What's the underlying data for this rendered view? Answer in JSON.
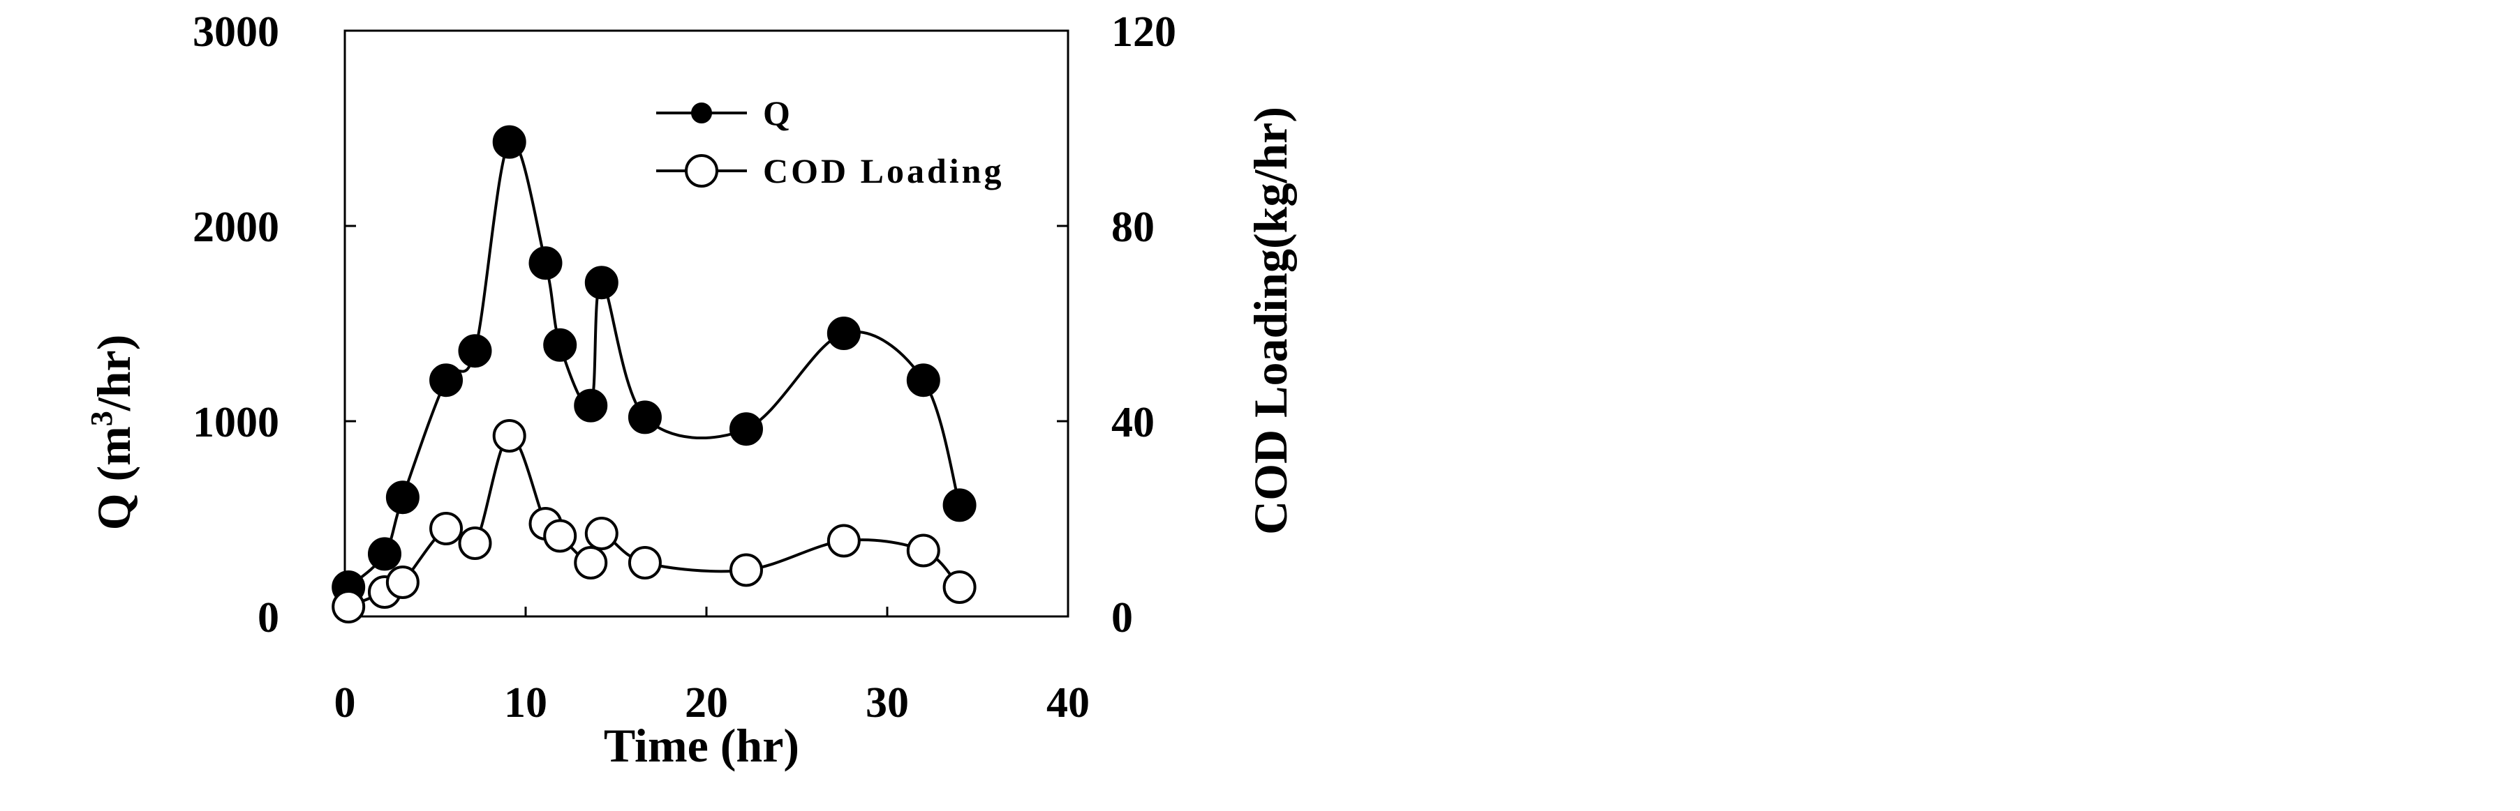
{
  "chart_data": {
    "type": "line",
    "x_axis": {
      "label": "Time (hr)",
      "min": 0,
      "max": 40,
      "ticks": [
        0,
        10,
        20,
        30,
        40
      ]
    },
    "y_left": {
      "label_prefix": "Q (m",
      "label_sup": "3",
      "label_suffix": "/hr)",
      "min": 0,
      "max": 3000,
      "ticks": [
        0,
        1000,
        2000,
        3000
      ]
    },
    "y_right": {
      "label": "COD Loading(kg/hr)",
      "min": 0,
      "max": 120,
      "ticks": [
        0,
        40,
        80,
        120
      ]
    },
    "series": [
      {
        "name": "Q",
        "axis": "left",
        "marker": "filled-circle",
        "color": "#000000",
        "points": [
          {
            "x": 0.2,
            "y": 150
          },
          {
            "x": 2.2,
            "y": 320
          },
          {
            "x": 3.2,
            "y": 610
          },
          {
            "x": 5.6,
            "y": 1210
          },
          {
            "x": 7.2,
            "y": 1360
          },
          {
            "x": 9.1,
            "y": 2430
          },
          {
            "x": 11.1,
            "y": 1810
          },
          {
            "x": 11.9,
            "y": 1390
          },
          {
            "x": 13.6,
            "y": 1080
          },
          {
            "x": 14.2,
            "y": 1710
          },
          {
            "x": 16.6,
            "y": 1020
          },
          {
            "x": 22.2,
            "y": 960
          },
          {
            "x": 27.6,
            "y": 1450
          },
          {
            "x": 32.0,
            "y": 1210
          },
          {
            "x": 34.0,
            "y": 570
          }
        ]
      },
      {
        "name": "COD  Loading",
        "axis": "right",
        "marker": "open-circle",
        "color": "#000000",
        "points": [
          {
            "x": 0.2,
            "y": 2
          },
          {
            "x": 2.2,
            "y": 5
          },
          {
            "x": 3.2,
            "y": 7
          },
          {
            "x": 5.6,
            "y": 18
          },
          {
            "x": 7.2,
            "y": 15
          },
          {
            "x": 9.1,
            "y": 37
          },
          {
            "x": 11.1,
            "y": 19
          },
          {
            "x": 11.9,
            "y": 16.5
          },
          {
            "x": 13.6,
            "y": 11
          },
          {
            "x": 14.2,
            "y": 17
          },
          {
            "x": 16.6,
            "y": 11
          },
          {
            "x": 22.2,
            "y": 9.5
          },
          {
            "x": 27.6,
            "y": 15.5
          },
          {
            "x": 32.0,
            "y": 13.5
          },
          {
            "x": 34.0,
            "y": 6
          }
        ]
      }
    ],
    "legend": {
      "position": "top-center"
    },
    "grid": false
  }
}
